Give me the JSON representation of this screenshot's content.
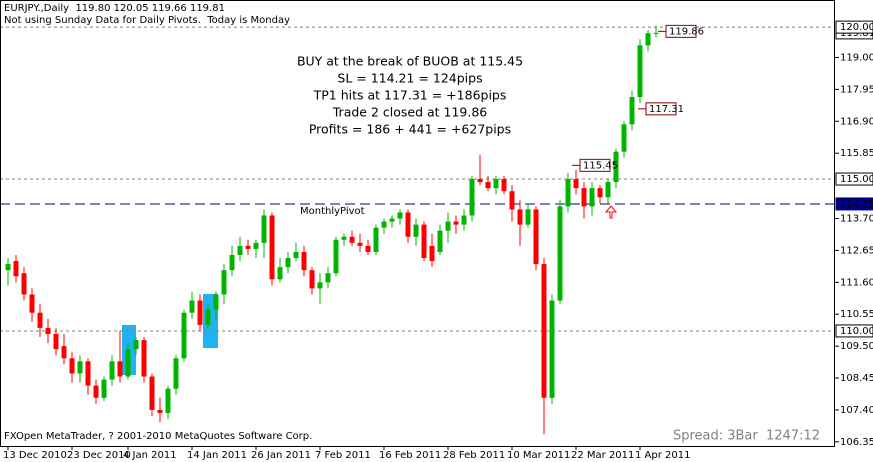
{
  "chart_data": {
    "type": "candlestick",
    "title": "EURJPY.,Daily  119.80 120.05 119.66 119.81",
    "subtitle": "Not using Sunday Data for Daily Pivots.  Today is Monday",
    "categories": [
      "13 Dec 2010",
      null,
      null,
      null,
      null,
      null,
      null,
      null,
      "23 Dec 2010",
      null,
      null,
      null,
      null,
      null,
      null,
      "4 Jan 2011",
      null,
      null,
      null,
      null,
      null,
      null,
      null,
      "14 Jan 2011",
      null,
      null,
      null,
      null,
      null,
      null,
      null,
      "26 Jan 2011",
      null,
      null,
      null,
      null,
      null,
      null,
      null,
      "7 Feb 2011",
      null,
      null,
      null,
      null,
      null,
      null,
      null,
      "16 Feb 2011",
      null,
      null,
      null,
      null,
      null,
      null,
      null,
      "28 Feb 2011",
      null,
      null,
      null,
      null,
      null,
      null,
      null,
      "10 Mar 2011",
      null,
      null,
      null,
      null,
      null,
      null,
      null,
      "22 Mar 2011",
      null,
      null,
      null,
      null,
      null,
      null,
      null,
      "1 Apr 2011",
      null,
      null
    ],
    "open": [
      112.0,
      112.3,
      111.9,
      111.2,
      110.6,
      110.1,
      109.9,
      109.5,
      109.1,
      108.6,
      109.0,
      108.2,
      107.8,
      108.4,
      109.0,
      108.5,
      109.4,
      109.7,
      108.5,
      107.4,
      107.3,
      108.1,
      109.1,
      110.6,
      111.0,
      110.2,
      110.7,
      111.2,
      112.0,
      112.5,
      112.8,
      112.7,
      112.9,
      113.8,
      111.7,
      112.1,
      112.4,
      112.6,
      112.0,
      111.4,
      111.6,
      111.9,
      113.0,
      113.1,
      112.9,
      112.8,
      112.6,
      113.4,
      113.6,
      113.7,
      113.9,
      113.1,
      113.5,
      112.8,
      112.6,
      113.3,
      113.6,
      113.5,
      113.8,
      115.0,
      114.9,
      114.7,
      115.0,
      114.6,
      114.0,
      113.5,
      114.0,
      112.2,
      107.8,
      111.0,
      114.1,
      115.0,
      114.7,
      114.1,
      114.7,
      114.4,
      114.9,
      115.9,
      116.8,
      117.7,
      119.4,
      119.8
    ],
    "high": [
      112.4,
      112.5,
      112.1,
      111.4,
      110.9,
      110.4,
      110.1,
      109.9,
      109.3,
      109.2,
      109.1,
      108.4,
      108.5,
      109.2,
      110.0,
      109.6,
      109.8,
      109.8,
      108.6,
      107.8,
      108.2,
      109.2,
      110.7,
      111.3,
      111.2,
      110.9,
      111.3,
      112.2,
      112.8,
      113.1,
      113.0,
      113.0,
      114.0,
      113.9,
      112.4,
      112.6,
      112.9,
      112.8,
      112.1,
      111.9,
      112.1,
      113.1,
      113.2,
      113.3,
      113.2,
      113.0,
      113.5,
      113.7,
      113.8,
      114.0,
      114.0,
      113.7,
      113.6,
      113.2,
      113.5,
      113.9,
      113.8,
      114.0,
      115.1,
      115.8,
      115.1,
      115.1,
      115.1,
      114.8,
      114.3,
      114.2,
      114.1,
      112.4,
      111.2,
      114.3,
      115.2,
      115.3,
      114.9,
      114.9,
      114.8,
      115.0,
      116.0,
      116.9,
      117.9,
      119.6,
      119.9,
      120.05
    ],
    "low": [
      111.5,
      111.6,
      111.0,
      110.3,
      109.8,
      109.6,
      109.2,
      108.9,
      108.3,
      108.3,
      107.9,
      107.6,
      107.7,
      108.2,
      108.3,
      108.4,
      109.2,
      108.3,
      107.2,
      107.0,
      107.1,
      107.9,
      109.0,
      110.4,
      110.0,
      110.1,
      110.4,
      110.9,
      111.8,
      112.3,
      112.5,
      112.4,
      112.4,
      111.5,
      111.6,
      111.9,
      112.3,
      111.8,
      111.2,
      110.9,
      111.4,
      111.8,
      112.8,
      112.8,
      112.6,
      112.5,
      112.5,
      113.2,
      113.4,
      113.5,
      112.9,
      112.8,
      112.3,
      112.1,
      112.5,
      112.9,
      113.2,
      113.3,
      113.6,
      114.8,
      114.6,
      114.5,
      114.5,
      113.6,
      112.8,
      113.4,
      112.0,
      106.6,
      107.6,
      110.9,
      113.9,
      114.5,
      113.7,
      113.8,
      114.2,
      114.2,
      114.7,
      115.7,
      116.6,
      117.5,
      119.2,
      119.66
    ],
    "close": [
      112.2,
      111.8,
      111.2,
      110.6,
      110.1,
      109.9,
      109.4,
      109.1,
      108.6,
      109.0,
      108.2,
      107.8,
      108.4,
      109.0,
      108.5,
      109.4,
      109.7,
      108.5,
      107.4,
      107.3,
      108.1,
      109.1,
      110.6,
      111.0,
      110.2,
      110.7,
      111.2,
      112.0,
      112.5,
      112.8,
      112.7,
      112.9,
      113.8,
      111.7,
      112.1,
      112.4,
      112.6,
      112.0,
      111.4,
      111.6,
      111.9,
      113.0,
      113.1,
      112.9,
      112.8,
      112.6,
      113.4,
      113.6,
      113.7,
      113.9,
      113.1,
      113.5,
      112.4,
      112.3,
      113.3,
      113.6,
      113.5,
      113.8,
      115.0,
      114.9,
      114.7,
      115.0,
      114.6,
      114.0,
      113.5,
      114.0,
      112.2,
      107.8,
      111.0,
      114.1,
      115.0,
      114.7,
      114.1,
      114.7,
      114.4,
      114.9,
      115.9,
      116.8,
      117.7,
      119.4,
      119.8,
      119.81
    ],
    "up_color": "#00b400",
    "down_color": "#ff0000",
    "ylim": [
      106.18,
      120.3
    ],
    "yticks": [
      {
        "value": 119,
        "label": "119.00"
      },
      {
        "value": 117.95,
        "label": "117.95"
      },
      {
        "value": 116.9,
        "label": "116.90"
      },
      {
        "value": 115.85,
        "label": "115.85"
      },
      {
        "value": 113.7,
        "label": "113.70"
      },
      {
        "value": 112.65,
        "label": "112.65"
      },
      {
        "value": 111.6,
        "label": "111.60"
      },
      {
        "value": 110.55,
        "label": "110.55"
      },
      {
        "value": 109.5,
        "label": "109.50"
      },
      {
        "value": 108.45,
        "label": "108.45"
      },
      {
        "value": 107.4,
        "label": "107.40"
      },
      {
        "value": 106.35,
        "label": "106.35"
      }
    ],
    "last_price": {
      "value": 119.81,
      "label": "119.81"
    },
    "levels": [
      {
        "value": 120,
        "label": "120.00",
        "color": "#808080"
      },
      {
        "value": 115,
        "label": "115.00",
        "color": "#808080"
      },
      {
        "value": 114.18,
        "label": "114.18",
        "color": "#00008b",
        "name": "MonthlyPivot"
      },
      {
        "value": 110,
        "label": "110.00",
        "color": "#808080"
      }
    ],
    "price_labels": [
      {
        "value": 115.45,
        "label": "115.45"
      },
      {
        "value": 117.31,
        "label": "117.31"
      },
      {
        "value": 119.86,
        "label": "119.86"
      }
    ],
    "annotation": [
      "BUY at the break of BUOB at 115.45",
      "SL = 114.21 = 124pips",
      "TP1 hits at 117.31 = +186pips",
      "Trade 2 closed at 119.86",
      "Profits = 186 + 441 = +627pips"
    ],
    "footer": "FXOpen MetaTrader, ? 2001-2010 MetaQuotes Software Corp.",
    "spread": "Spread: 3Bar  1247:12"
  }
}
